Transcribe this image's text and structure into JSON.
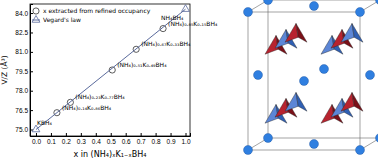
{
  "chart_data": {
    "type": "scatter",
    "x_label": "x in (NH₄)ₓK₁₋ₓBH₄",
    "y_label": "V/Z (Å³)",
    "xlim": [
      -0.04,
      1.03
    ],
    "ylim": [
      74.5,
      84.7
    ],
    "xticks": [
      {
        "value": 0,
        "label": "0.0"
      },
      0.1,
      0.2,
      0.3,
      0.4,
      0.5,
      0.6,
      0.7,
      0.8,
      0.9,
      {
        "value": 1,
        "label": "1.0"
      }
    ],
    "yticks": [
      {
        "value": 75,
        "label": "75.0"
      },
      76.5,
      {
        "value": 78,
        "label": "78.0"
      },
      79.5,
      {
        "value": 81,
        "label": "81.0"
      },
      82.5,
      {
        "value": 84,
        "label": "84.0"
      }
    ],
    "legend": "top-left",
    "series": [
      {
        "name": "x extracted from refined occupancy",
        "type": "scatter",
        "marker": "circle",
        "color": "#333333",
        "x": [
          0.14,
          0.23,
          0.51,
          0.67,
          0.85
        ],
        "values": [
          76.3,
          77.1,
          79.6,
          81.2,
          82.8
        ],
        "labels": [
          "(NH₄)₀.₁₄K₀.₈₆BH₄",
          "(NH₄)₀.₂₃K₀.₇₇BH₄",
          "(NH₄)₀.₅₁K₀.₄₉BH₄",
          "(NH₄)₀.₆₇K₀.₃₃BH₄",
          "(NH₄)₀.₈₅K₀.₁₅BH₄"
        ]
      },
      {
        "name": "Vegard's law",
        "type": "line",
        "marker": "triangle",
        "color": "#5a6a9c",
        "x": [
          0,
          1
        ],
        "values": [
          75.0,
          84.3
        ],
        "labels": [
          "KBH₄",
          "NH₄BH₄"
        ]
      }
    ]
  }
}
